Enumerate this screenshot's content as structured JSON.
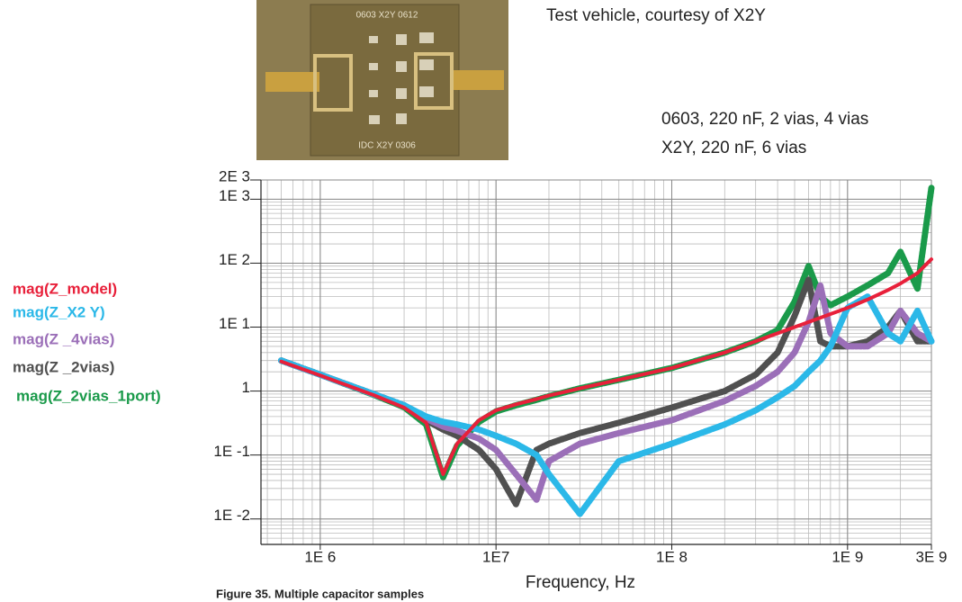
{
  "photo": {
    "top_label": "0603 X2Y 0612",
    "bottom_label": "IDC X2Y 0306"
  },
  "caption": "Test vehicle, courtesy of X2Y",
  "notes": [
    "0603, 220 nF, 2 vias, 4 vias",
    "X2Y, 220 nF, 6 vias"
  ],
  "figure_caption": "Figure 35. Multiple capacitor samples",
  "chart_data": {
    "type": "line",
    "xlabel": "Frequency, Hz",
    "log_x": true,
    "log_y": true,
    "grid": true,
    "minor_grid": true,
    "legend": "left",
    "xlim": [
      460000,
      3000000000
    ],
    "xticks": [
      {
        "value": 1000000,
        "label": "1E 6"
      },
      {
        "value": 10000000,
        "label": "1E7"
      },
      {
        "value": 100000000,
        "label": "1E 8"
      },
      {
        "value": 1000000000,
        "label": "1E 9"
      },
      {
        "value": 3000000000,
        "label": "3E 9"
      }
    ],
    "ylim": [
      0.004,
      2000
    ],
    "yticks": [
      {
        "value": 2000,
        "label": "2E 3"
      },
      {
        "value": 1000,
        "label": "1E 3"
      },
      {
        "value": 100,
        "label": "1E 2"
      },
      {
        "value": 10,
        "label": "1E 1"
      },
      1,
      {
        "value": 0.1,
        "label": "1E -1"
      },
      {
        "value": 0.01,
        "label": "1E -2"
      }
    ],
    "x": [
      600000,
      1000000,
      2000000,
      3000000,
      4000000,
      5000000,
      6000000,
      8000000,
      10000000,
      13000000,
      17000000,
      20000000,
      30000000,
      50000000,
      100000000,
      200000000,
      300000000,
      400000000,
      500000000,
      600000000,
      700000000,
      800000000,
      1000000000,
      1300000000,
      1700000000,
      2000000000,
      2500000000,
      3000000000
    ],
    "series": [
      {
        "name": "mag(Z_2vias_1port)",
        "color": "#1a9a4a",
        "values": [
          3.0,
          1.8,
          0.88,
          0.56,
          0.3,
          0.045,
          0.14,
          0.33,
          0.48,
          0.6,
          0.73,
          0.83,
          1.1,
          1.5,
          2.3,
          4,
          6,
          9,
          25,
          90,
          30,
          22,
          30,
          45,
          70,
          150,
          40,
          1500
        ]
      },
      {
        "name": "mag(Z _2vias)",
        "color": "#505050",
        "values": [
          3.0,
          1.8,
          0.9,
          0.6,
          0.35,
          0.25,
          0.2,
          0.12,
          0.06,
          0.017,
          0.12,
          0.15,
          0.22,
          0.32,
          0.55,
          1.0,
          1.8,
          4,
          15,
          55,
          6,
          5,
          5,
          6,
          10,
          18,
          6,
          6
        ]
      },
      {
        "name": "mag(Z _4vias)",
        "color": "#9b6fb8",
        "values": [
          3.0,
          1.8,
          0.9,
          0.6,
          0.37,
          0.28,
          0.24,
          0.18,
          0.12,
          0.05,
          0.02,
          0.08,
          0.15,
          0.22,
          0.35,
          0.7,
          1.2,
          2,
          4,
          12,
          45,
          8,
          5,
          5,
          8,
          18,
          8,
          6
        ]
      },
      {
        "name": "mag(Z_X2 Y)",
        "color": "#2bb8e8",
        "values": [
          3.0,
          1.8,
          0.9,
          0.6,
          0.4,
          0.33,
          0.3,
          0.25,
          0.2,
          0.15,
          0.1,
          0.05,
          0.012,
          0.08,
          0.15,
          0.3,
          0.5,
          0.8,
          1.2,
          2,
          3,
          5,
          20,
          30,
          8,
          6,
          18,
          6
        ]
      },
      {
        "name": "mag(Z_model)",
        "color": "#e8203a",
        "values": [
          2.9,
          1.75,
          0.87,
          0.55,
          0.32,
          0.05,
          0.15,
          0.35,
          0.5,
          0.62,
          0.75,
          0.85,
          1.1,
          1.5,
          2.3,
          4,
          6,
          8,
          10,
          12,
          14,
          16,
          20,
          27,
          38,
          48,
          70,
          115
        ]
      }
    ]
  }
}
